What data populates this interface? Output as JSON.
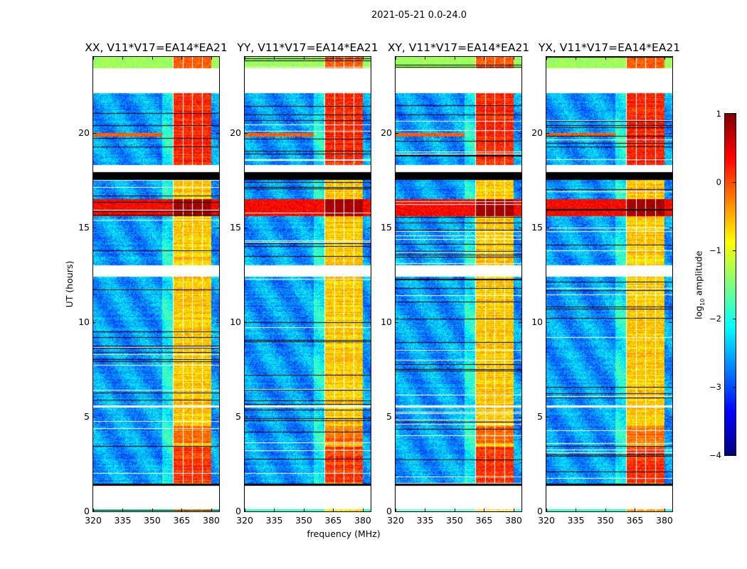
{
  "chart_data": {
    "type": "heatmap",
    "title": "2021-05-21 0.0-24.0",
    "xlabel": "frequency (MHz)",
    "ylabel": "UT (hours)",
    "xlim": [
      320,
      384
    ],
    "ylim": [
      0,
      24
    ],
    "xticks": [
      "320",
      "335",
      "350",
      "365",
      "380"
    ],
    "xtick_values": [
      320,
      335,
      350,
      365,
      380
    ],
    "yticks": [
      "0",
      "5",
      "10",
      "15",
      "20"
    ],
    "ytick_values": [
      0,
      5,
      10,
      15,
      20
    ],
    "colormap": "jet",
    "colorbar": {
      "label_prefix": "log",
      "label_sub": "10",
      "label_suffix": " amplitude",
      "range": [
        -4,
        1
      ],
      "ticks": [
        "1",
        "0",
        "−1",
        "−2",
        "−3",
        "−4"
      ],
      "tick_values": [
        1,
        0,
        -1,
        -2,
        -3,
        -4
      ]
    },
    "panels": [
      {
        "title": "XX, V11*V17=EA14*EA21",
        "row20_rfi": true
      },
      {
        "title": "YY, V11*V17=EA14*EA21",
        "row20_rfi": true
      },
      {
        "title": "XY, V11*V17=EA14*EA21",
        "row20_rfi": true
      },
      {
        "title": "YX, V11*V17=EA14*EA21",
        "row20_rfi": true
      }
    ],
    "features": {
      "background_level_log10": -3,
      "rfi_band_MHz": [
        360.5,
        380
      ],
      "rfi_band_level_log10": -0.5,
      "strong_rfi_time_hours": [
        15.6,
        16.5
      ],
      "strong_rfi_level_log10": 0.8,
      "flagged_time_ranges_hours": [
        [
          0.1,
          1.4
        ],
        [
          5.5,
          5.6
        ],
        [
          12.4,
          13.0
        ],
        [
          17.9,
          18.3
        ],
        [
          22.1,
          23.4
        ]
      ],
      "black_time_ranges_hours": [
        [
          1.35,
          1.45
        ],
        [
          17.5,
          17.9
        ]
      ]
    }
  }
}
